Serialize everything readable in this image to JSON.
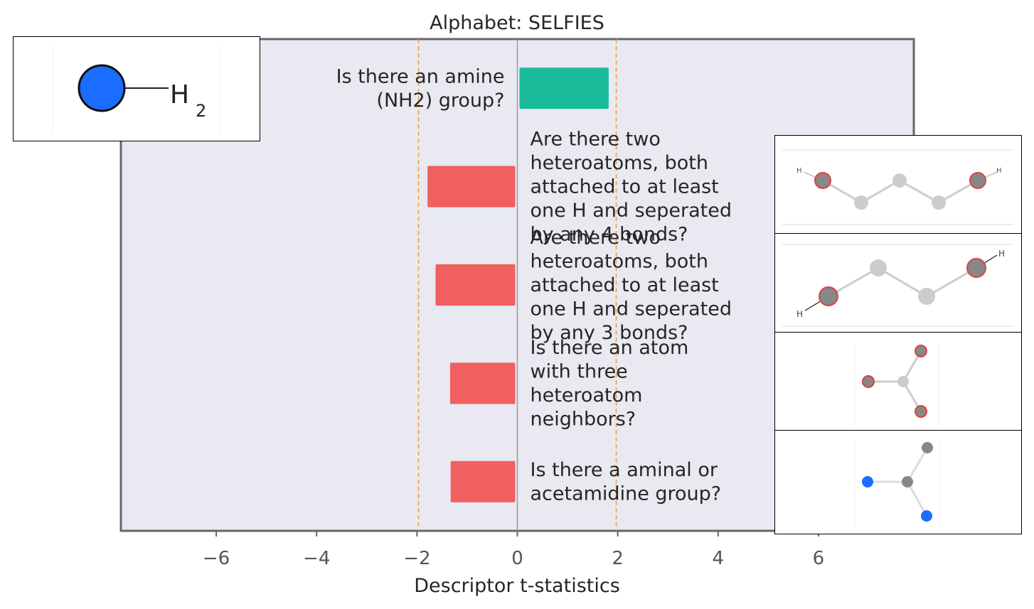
{
  "chart_data": {
    "type": "bar",
    "orientation": "horizontal",
    "title": "Alphabet: SELFIES",
    "xlabel": "Descriptor t-statistics",
    "ylabel": "",
    "xlim": [
      -7.9,
      7.9
    ],
    "xticks": [
      -6,
      -4,
      -2,
      0,
      2,
      4,
      6
    ],
    "xtick_labels": [
      "−6",
      "−4",
      "−2",
      "0",
      "2",
      "4",
      "6"
    ],
    "significance_lines": [
      -1.97,
      1.97
    ],
    "grid": false,
    "categories": [
      "Is there an amine (NH2) group?",
      "Are there two heteroatoms, both attached to at least one H and seperated by any 4 bonds?",
      "Are there two heteroatoms, both attached to at least one H and seperated by any 3 bonds?",
      "Is there an atom with three heteroatom neighbors?",
      "Is there an aminal or acetamidine group?"
    ],
    "label_lines": [
      [
        "Is there an amine",
        "(NH2) group?"
      ],
      [
        "Are there two",
        "heteroatoms, both",
        "attached to at least",
        "one H and seperated",
        "by any 4 bonds?"
      ],
      [
        "Are there two",
        "heteroatoms, both",
        "attached to at least",
        "one H and seperated",
        "by any 3 bonds?"
      ],
      [
        "Is there an atom",
        "with three",
        "heteroatom",
        "neighbors?"
      ],
      [
        "Is there a aminal or",
        "acetamidine group?"
      ]
    ],
    "values": [
      1.82,
      -1.79,
      -1.63,
      -1.34,
      -1.33
    ],
    "colors": {
      "positive": "#1abc9c",
      "negative": "#f06060",
      "plot_background": "#e9e9f1",
      "significance_line": "#f0a030"
    }
  },
  "thumbnails": [
    {
      "depicts": "amine-nh2-structure",
      "text_main": "H",
      "text_sub": "2"
    },
    {
      "depicts": "heteroatoms-4-bonds-structure",
      "text_left": "H",
      "text_right": "H"
    },
    {
      "depicts": "heteroatoms-3-bonds-structure",
      "text_left": "H",
      "text_right": "H"
    },
    {
      "depicts": "three-heteroatom-neighbors-structure"
    },
    {
      "depicts": "aminal-acetamidine-structure"
    }
  ]
}
